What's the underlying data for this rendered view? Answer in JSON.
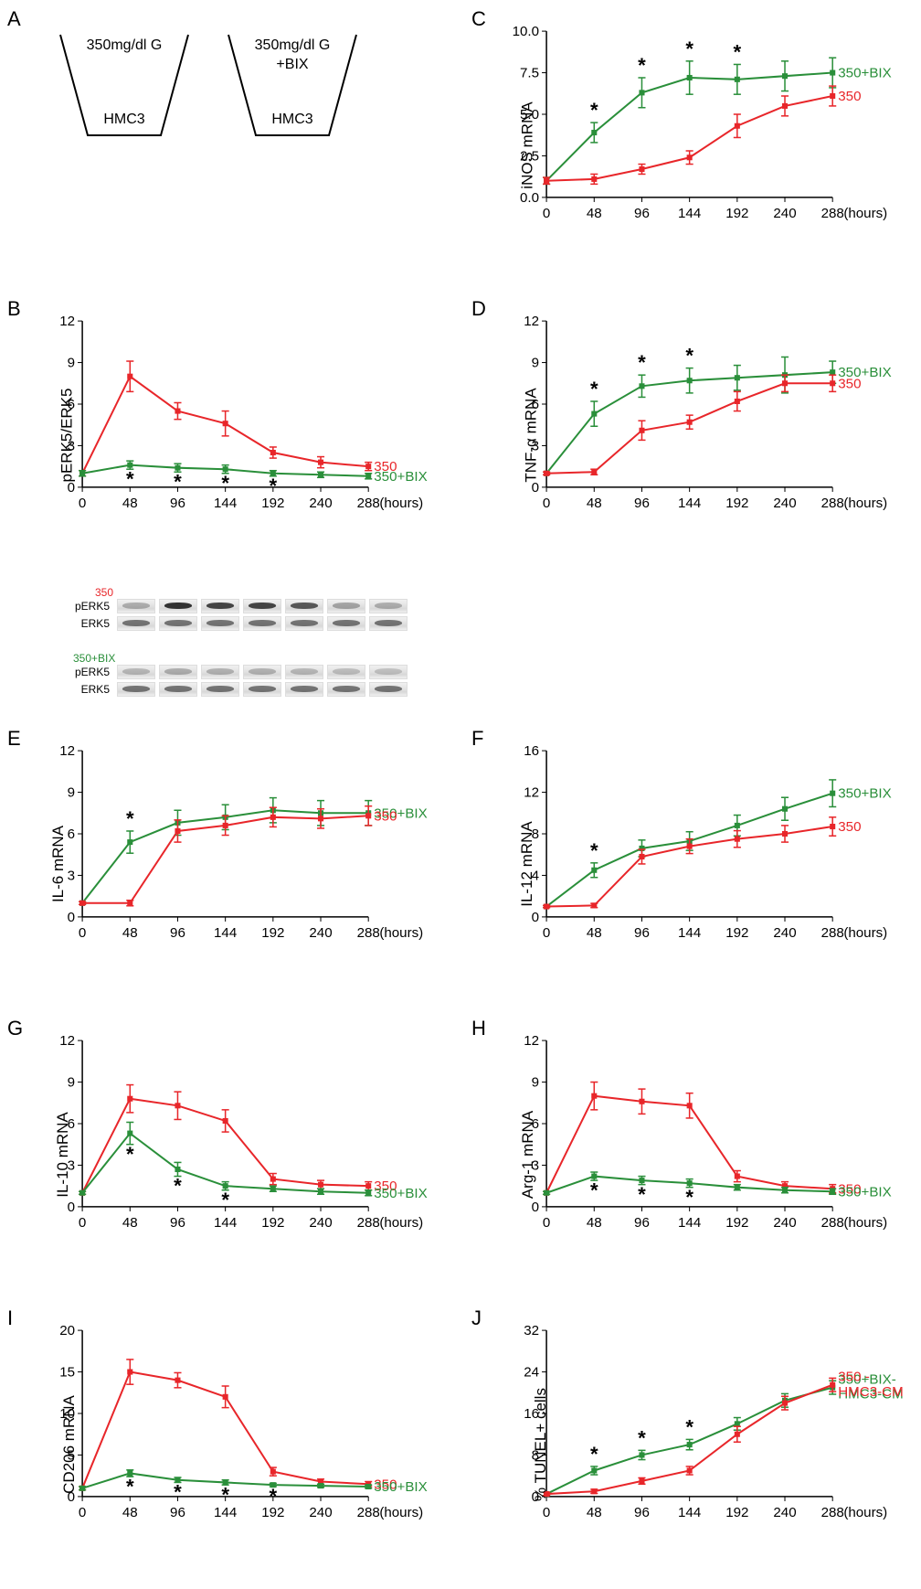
{
  "palette": {
    "series_350": "#e8262a",
    "series_350bix": "#2a8f3a",
    "axis": "#000000",
    "bg": "#ffffff",
    "band_light": "#cfcfcf",
    "band_dark": "#3a3a3a"
  },
  "fonts": {
    "panel_label_pt": 22,
    "axis_tick_pt": 15,
    "axis_label_pt": 17,
    "series_label_pt": 15
  },
  "x_axis": {
    "ticks": [
      0,
      48,
      96,
      144,
      192,
      240,
      288
    ],
    "unit": "(hours)"
  },
  "panels": {
    "A": {
      "label": "A",
      "beakers": [
        {
          "top": "350mg/dl G",
          "bottom": "HMC3"
        },
        {
          "top_line1": "350mg/dl G",
          "top_line2": "+BIX",
          "bottom": "HMC3"
        }
      ]
    },
    "B": {
      "label": "B",
      "type": "line",
      "ylabel": "pERK5/ERK5",
      "ylim": [
        0,
        12
      ],
      "ytick_step": 3,
      "series": [
        {
          "name": "350",
          "color": "#e8262a",
          "label_at": "right",
          "values": [
            1.0,
            8.0,
            5.5,
            4.6,
            2.5,
            1.8,
            1.5
          ],
          "err": [
            0.2,
            1.1,
            0.6,
            0.9,
            0.4,
            0.4,
            0.3
          ]
        },
        {
          "name": "350+BIX",
          "color": "#2a8f3a",
          "label_at": "right",
          "values": [
            1.0,
            1.6,
            1.4,
            1.3,
            1.0,
            0.9,
            0.8
          ],
          "err": [
            0.2,
            0.3,
            0.3,
            0.3,
            0.2,
            0.2,
            0.2
          ]
        }
      ],
      "stars_at_x": [
        48,
        96,
        144,
        192
      ],
      "blot": {
        "groups": [
          {
            "name": "350",
            "color": "#e8262a",
            "rows": [
              {
                "label": "pERK5",
                "intensity": [
                  0.3,
                  0.95,
                  0.85,
                  0.85,
                  0.75,
                  0.35,
                  0.3
                ]
              },
              {
                "label": "ERK5",
                "intensity": [
                  0.6,
                  0.6,
                  0.6,
                  0.6,
                  0.6,
                  0.6,
                  0.6
                ]
              }
            ]
          },
          {
            "name": "350+BIX",
            "color": "#2a8f3a",
            "rows": [
              {
                "label": "pERK5",
                "intensity": [
                  0.25,
                  0.3,
                  0.28,
                  0.28,
                  0.25,
                  0.22,
                  0.2
                ]
              },
              {
                "label": "ERK5",
                "intensity": [
                  0.6,
                  0.6,
                  0.6,
                  0.6,
                  0.6,
                  0.6,
                  0.6
                ]
              }
            ]
          }
        ]
      }
    },
    "C": {
      "label": "C",
      "type": "line",
      "ylabel": "iNOS mRNA",
      "ylim": [
        0,
        10
      ],
      "ytick_step": 2.5,
      "series": [
        {
          "name": "350+BIX",
          "color": "#2a8f3a",
          "label_at": "right",
          "values": [
            1.0,
            3.9,
            6.3,
            7.2,
            7.1,
            7.3,
            7.5
          ],
          "err": [
            0.2,
            0.6,
            0.9,
            1.0,
            0.9,
            0.9,
            0.9
          ]
        },
        {
          "name": "350",
          "color": "#e8262a",
          "label_at": "right",
          "values": [
            1.0,
            1.1,
            1.7,
            2.4,
            4.3,
            5.5,
            6.1
          ],
          "err": [
            0.2,
            0.3,
            0.3,
            0.4,
            0.7,
            0.6,
            0.6
          ]
        }
      ],
      "stars_at_x": [
        48,
        96,
        144,
        192
      ]
    },
    "D": {
      "label": "D",
      "type": "line",
      "ylabel": "TNF-α mRNA",
      "ylim": [
        0,
        12
      ],
      "ytick_step": 3,
      "series": [
        {
          "name": "350+BIX",
          "color": "#2a8f3a",
          "label_at": "right",
          "values": [
            1.0,
            5.3,
            7.3,
            7.7,
            7.9,
            8.1,
            8.3
          ],
          "err": [
            0.1,
            0.9,
            0.8,
            0.9,
            0.9,
            1.3,
            0.8
          ]
        },
        {
          "name": "350",
          "color": "#e8262a",
          "label_at": "right",
          "values": [
            1.0,
            1.1,
            4.1,
            4.7,
            6.2,
            7.5,
            7.5
          ],
          "err": [
            0.1,
            0.2,
            0.7,
            0.5,
            0.7,
            0.6,
            0.6
          ]
        }
      ],
      "stars_at_x": [
        48,
        96,
        144
      ]
    },
    "E": {
      "label": "E",
      "type": "line",
      "ylabel": "IL-6 mRNA",
      "ylim": [
        0,
        12
      ],
      "ytick_step": 3,
      "series": [
        {
          "name": "350+BIX",
          "color": "#2a8f3a",
          "label_at": "right",
          "values": [
            1.0,
            5.4,
            6.8,
            7.2,
            7.7,
            7.5,
            7.5
          ],
          "err": [
            0.1,
            0.8,
            0.9,
            0.9,
            0.9,
            0.9,
            0.9
          ]
        },
        {
          "name": "350",
          "color": "#e8262a",
          "label_at": "right",
          "values": [
            1.0,
            1.0,
            6.2,
            6.6,
            7.2,
            7.1,
            7.3
          ],
          "err": [
            0.1,
            0.2,
            0.8,
            0.7,
            0.7,
            0.7,
            0.7
          ]
        }
      ],
      "stars_at_x": [
        48
      ]
    },
    "F": {
      "label": "F",
      "type": "line",
      "ylabel": "IL-12 mRNA",
      "ylim": [
        0,
        16
      ],
      "ytick_step": 4,
      "series": [
        {
          "name": "350+BIX",
          "color": "#2a8f3a",
          "label_at": "right",
          "values": [
            1.0,
            4.5,
            6.6,
            7.3,
            8.8,
            10.4,
            11.9
          ],
          "err": [
            0.1,
            0.7,
            0.8,
            0.9,
            1.0,
            1.1,
            1.3
          ]
        },
        {
          "name": "350",
          "color": "#e8262a",
          "label_at": "right",
          "values": [
            1.0,
            1.1,
            5.8,
            6.8,
            7.5,
            8.0,
            8.7
          ],
          "err": [
            0.1,
            0.2,
            0.7,
            0.7,
            0.8,
            0.8,
            0.9
          ]
        }
      ],
      "stars_at_x": [
        48
      ]
    },
    "G": {
      "label": "G",
      "type": "line",
      "ylabel": "IL-10 mRNA",
      "ylim": [
        0,
        12
      ],
      "ytick_step": 3,
      "series": [
        {
          "name": "350",
          "color": "#e8262a",
          "label_at": "right",
          "values": [
            1.0,
            7.8,
            7.3,
            6.2,
            2.0,
            1.6,
            1.5
          ],
          "err": [
            0.1,
            1.0,
            1.0,
            0.8,
            0.4,
            0.3,
            0.3
          ]
        },
        {
          "name": "350+BIX",
          "color": "#2a8f3a",
          "label_at": "right",
          "values": [
            1.0,
            5.3,
            2.7,
            1.5,
            1.3,
            1.1,
            1.0
          ],
          "err": [
            0.1,
            0.8,
            0.5,
            0.3,
            0.2,
            0.2,
            0.2
          ]
        }
      ],
      "stars_at_x": [
        48,
        96,
        144
      ]
    },
    "H": {
      "label": "H",
      "type": "line",
      "ylabel": "Arg-1 mRNA",
      "ylim": [
        0,
        12
      ],
      "ytick_step": 3,
      "series": [
        {
          "name": "350",
          "color": "#e8262a",
          "label_at": "right",
          "values": [
            1.0,
            8.0,
            7.6,
            7.3,
            2.2,
            1.5,
            1.3
          ],
          "err": [
            0.1,
            1.0,
            0.9,
            0.9,
            0.4,
            0.3,
            0.3
          ]
        },
        {
          "name": "350+BIX",
          "color": "#2a8f3a",
          "label_at": "right",
          "values": [
            1.0,
            2.2,
            1.9,
            1.7,
            1.4,
            1.2,
            1.1
          ],
          "err": [
            0.1,
            0.3,
            0.3,
            0.3,
            0.2,
            0.2,
            0.2
          ]
        }
      ],
      "stars_at_x": [
        48,
        96,
        144
      ]
    },
    "I": {
      "label": "I",
      "type": "line",
      "ylabel": "CD206 mRNA",
      "ylim": [
        0,
        20
      ],
      "ytick_step": 5,
      "series": [
        {
          "name": "350",
          "color": "#e8262a",
          "label_at": "right",
          "values": [
            1.0,
            15.0,
            14.0,
            12.0,
            3.0,
            1.8,
            1.5
          ],
          "err": [
            0.2,
            1.5,
            0.9,
            1.3,
            0.5,
            0.3,
            0.3
          ]
        },
        {
          "name": "350+BIX",
          "color": "#2a8f3a",
          "label_at": "right",
          "values": [
            1.0,
            2.8,
            2.0,
            1.7,
            1.4,
            1.3,
            1.2
          ],
          "err": [
            0.2,
            0.4,
            0.3,
            0.3,
            0.2,
            0.2,
            0.2
          ]
        }
      ],
      "stars_at_x": [
        48,
        96,
        144,
        192
      ]
    },
    "J": {
      "label": "J",
      "type": "line",
      "ylabel": "% TUNEL+ cells",
      "ylim": [
        0,
        32
      ],
      "ytick_step": 8,
      "series": [
        {
          "name": "350+BIX-HMC3-CM",
          "color": "#2a8f3a",
          "label_at": "right",
          "values": [
            0.5,
            5.0,
            8.0,
            10.0,
            14.0,
            18.5,
            21.0
          ],
          "err": [
            0.3,
            0.8,
            0.9,
            1.0,
            1.2,
            1.3,
            1.3
          ]
        },
        {
          "name": "350 -HMC3-CM",
          "color": "#e8262a",
          "label_at": "right",
          "values": [
            0.5,
            1.0,
            3.0,
            5.0,
            12.0,
            18.0,
            21.5
          ],
          "err": [
            0.3,
            0.4,
            0.6,
            0.8,
            1.5,
            1.3,
            1.3
          ]
        }
      ],
      "stars_at_x": [
        48,
        96,
        144
      ]
    }
  }
}
